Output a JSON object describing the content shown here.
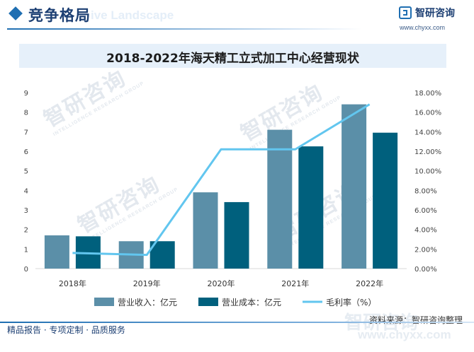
{
  "header": {
    "section_title": "竞争格局",
    "section_subtitle": "ive Landscape",
    "brand_name": "智研咨询",
    "brand_url": "www.chyxx.com"
  },
  "watermark": {
    "text": "智研咨询",
    "subtext": "INTELLIGENCE RESEARCH GROUP"
  },
  "chart_data": {
    "type": "bar",
    "title": "2018-2022年海天精工立式加工中心经营现状",
    "categories": [
      "2018年",
      "2019年",
      "2020年",
      "2021年",
      "2022年"
    ],
    "series": [
      {
        "name": "营业收入：亿元",
        "type": "bar",
        "axis": "left",
        "color": "#5b8fa8",
        "values": [
          1.7,
          1.4,
          3.9,
          7.1,
          8.4
        ]
      },
      {
        "name": "营业成本：亿元",
        "type": "bar",
        "axis": "left",
        "color": "#00607d",
        "values": [
          1.65,
          1.4,
          3.4,
          6.25,
          6.95
        ]
      },
      {
        "name": "毛利率（%）",
        "type": "line",
        "axis": "right",
        "color": "#62c6ef",
        "values": [
          1.6,
          1.4,
          12.2,
          12.2,
          16.8
        ]
      }
    ],
    "y_left": {
      "min": 0,
      "max": 9,
      "step": 1,
      "ticks": [
        "0",
        "1",
        "2",
        "3",
        "4",
        "5",
        "6",
        "7",
        "8",
        "9"
      ]
    },
    "y_right": {
      "min": 0,
      "max": 18,
      "step": 2,
      "ticks": [
        "0.00%",
        "2.00%",
        "4.00%",
        "6.00%",
        "8.00%",
        "10.00%",
        "12.00%",
        "14.00%",
        "16.00%",
        "18.00%"
      ]
    },
    "grid": false,
    "legend_position": "bottom"
  },
  "source": "资料来源：智研咨询整理",
  "footer": {
    "text": "精品报告 · 专项定制 · 品质服务",
    "watermark": "智研咨询",
    "watermark_url": "www.chyxx.com"
  }
}
